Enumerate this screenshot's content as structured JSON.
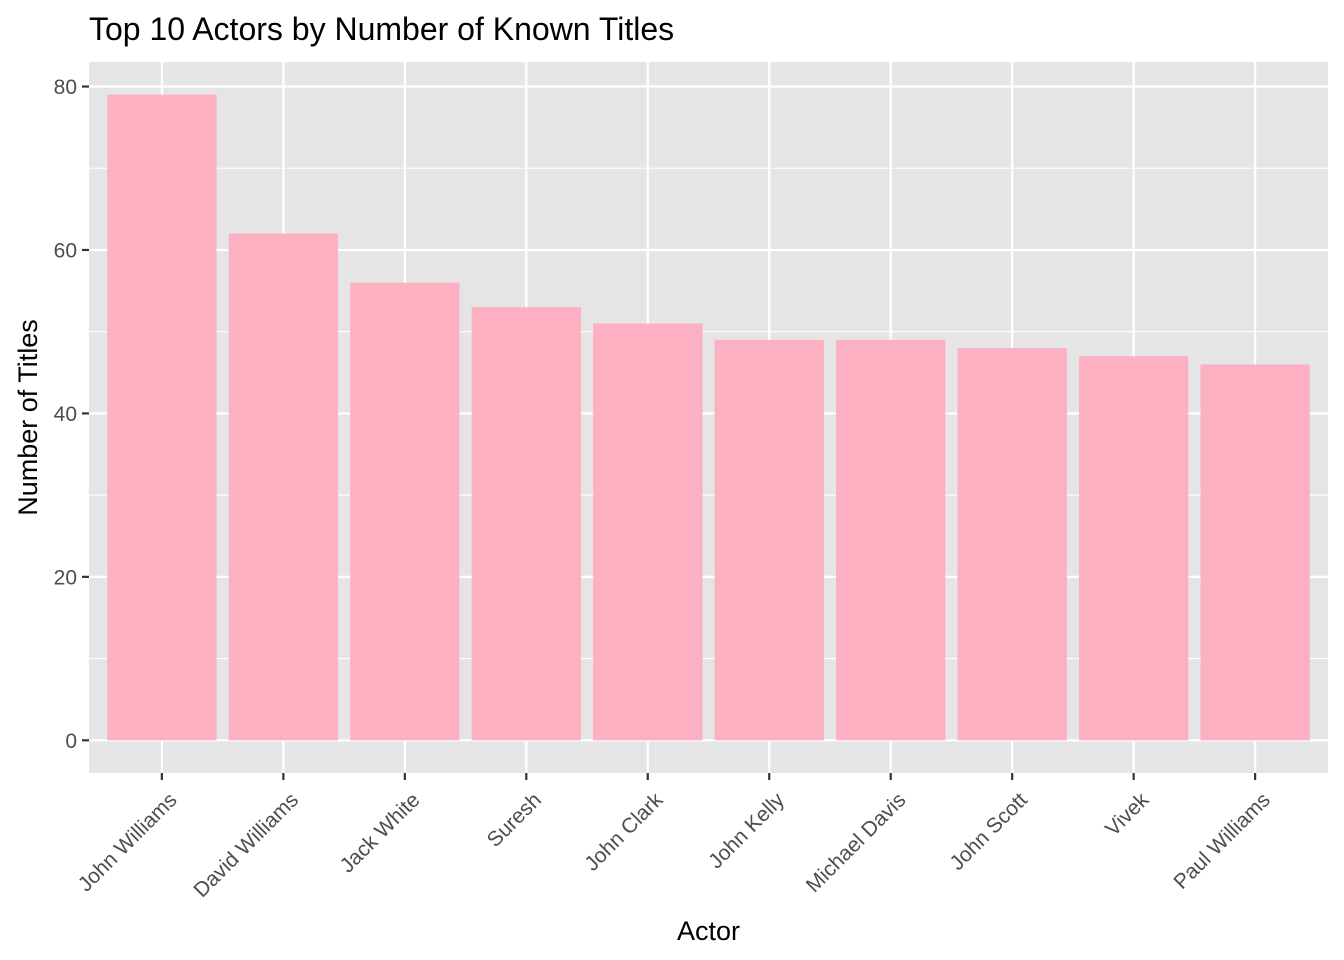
{
  "chart_data": {
    "type": "bar",
    "title": "Top 10 Actors by Number of Known Titles",
    "xlabel": "Actor",
    "ylabel": "Number of Titles",
    "categories": [
      "John Williams",
      "David Williams",
      "Jack White",
      "Suresh",
      "John Clark",
      "John Kelly",
      "Michael Davis",
      "John Scott",
      "Vivek",
      "Paul Williams"
    ],
    "values": [
      79,
      62,
      56,
      53,
      51,
      49,
      49,
      48,
      47,
      46
    ],
    "ylim": [
      -4,
      83
    ],
    "yticks": [
      0,
      20,
      40,
      60,
      80
    ],
    "grid": true,
    "legend": "none",
    "colors": {
      "bar": "#fcb0c2",
      "panel": "#e5e5e5",
      "grid": "#ffffff",
      "tick": "#4d4d4d"
    }
  }
}
